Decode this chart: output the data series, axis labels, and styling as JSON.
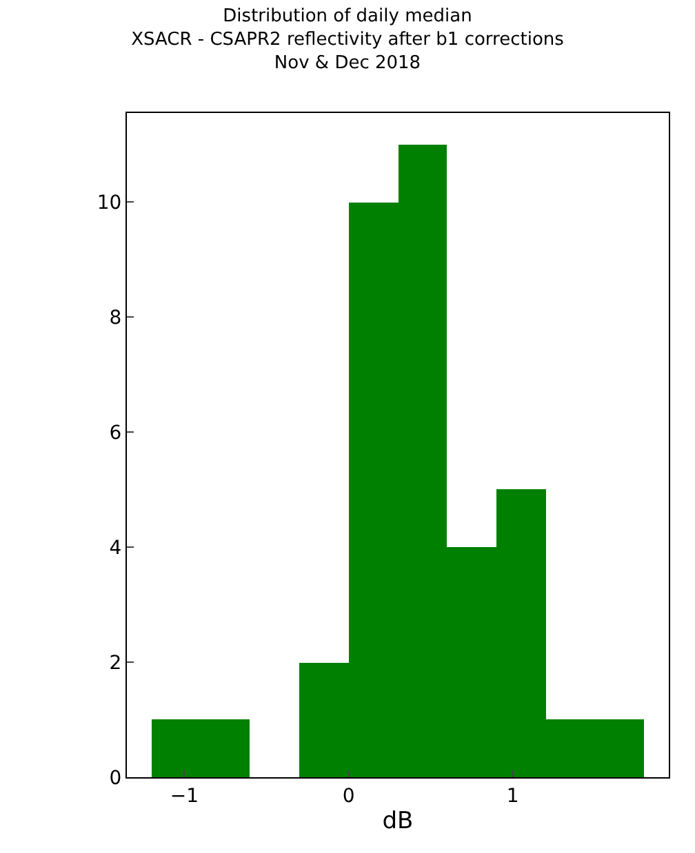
{
  "chart_data": {
    "type": "histogram",
    "title": "Distribution of daily median\nXSACR - CSAPR2 reflectivity after b1 corrections\nNov & Dec 2018",
    "xlabel": "dB",
    "bins": [
      -1.2,
      -0.9,
      -0.6,
      -0.3,
      0.0,
      0.3,
      0.6,
      0.9,
      1.2,
      1.5,
      1.8
    ],
    "values": [
      1,
      1,
      0,
      2,
      10,
      11,
      4,
      5,
      1,
      1
    ],
    "color": "#008000",
    "xlim": [
      -1.35,
      1.95
    ],
    "ylim": [
      0,
      11.55
    ],
    "xticks": [
      {
        "value": -1,
        "label": "−1"
      },
      0,
      1
    ],
    "yticks": [
      0,
      2,
      4,
      6,
      8,
      10
    ]
  }
}
